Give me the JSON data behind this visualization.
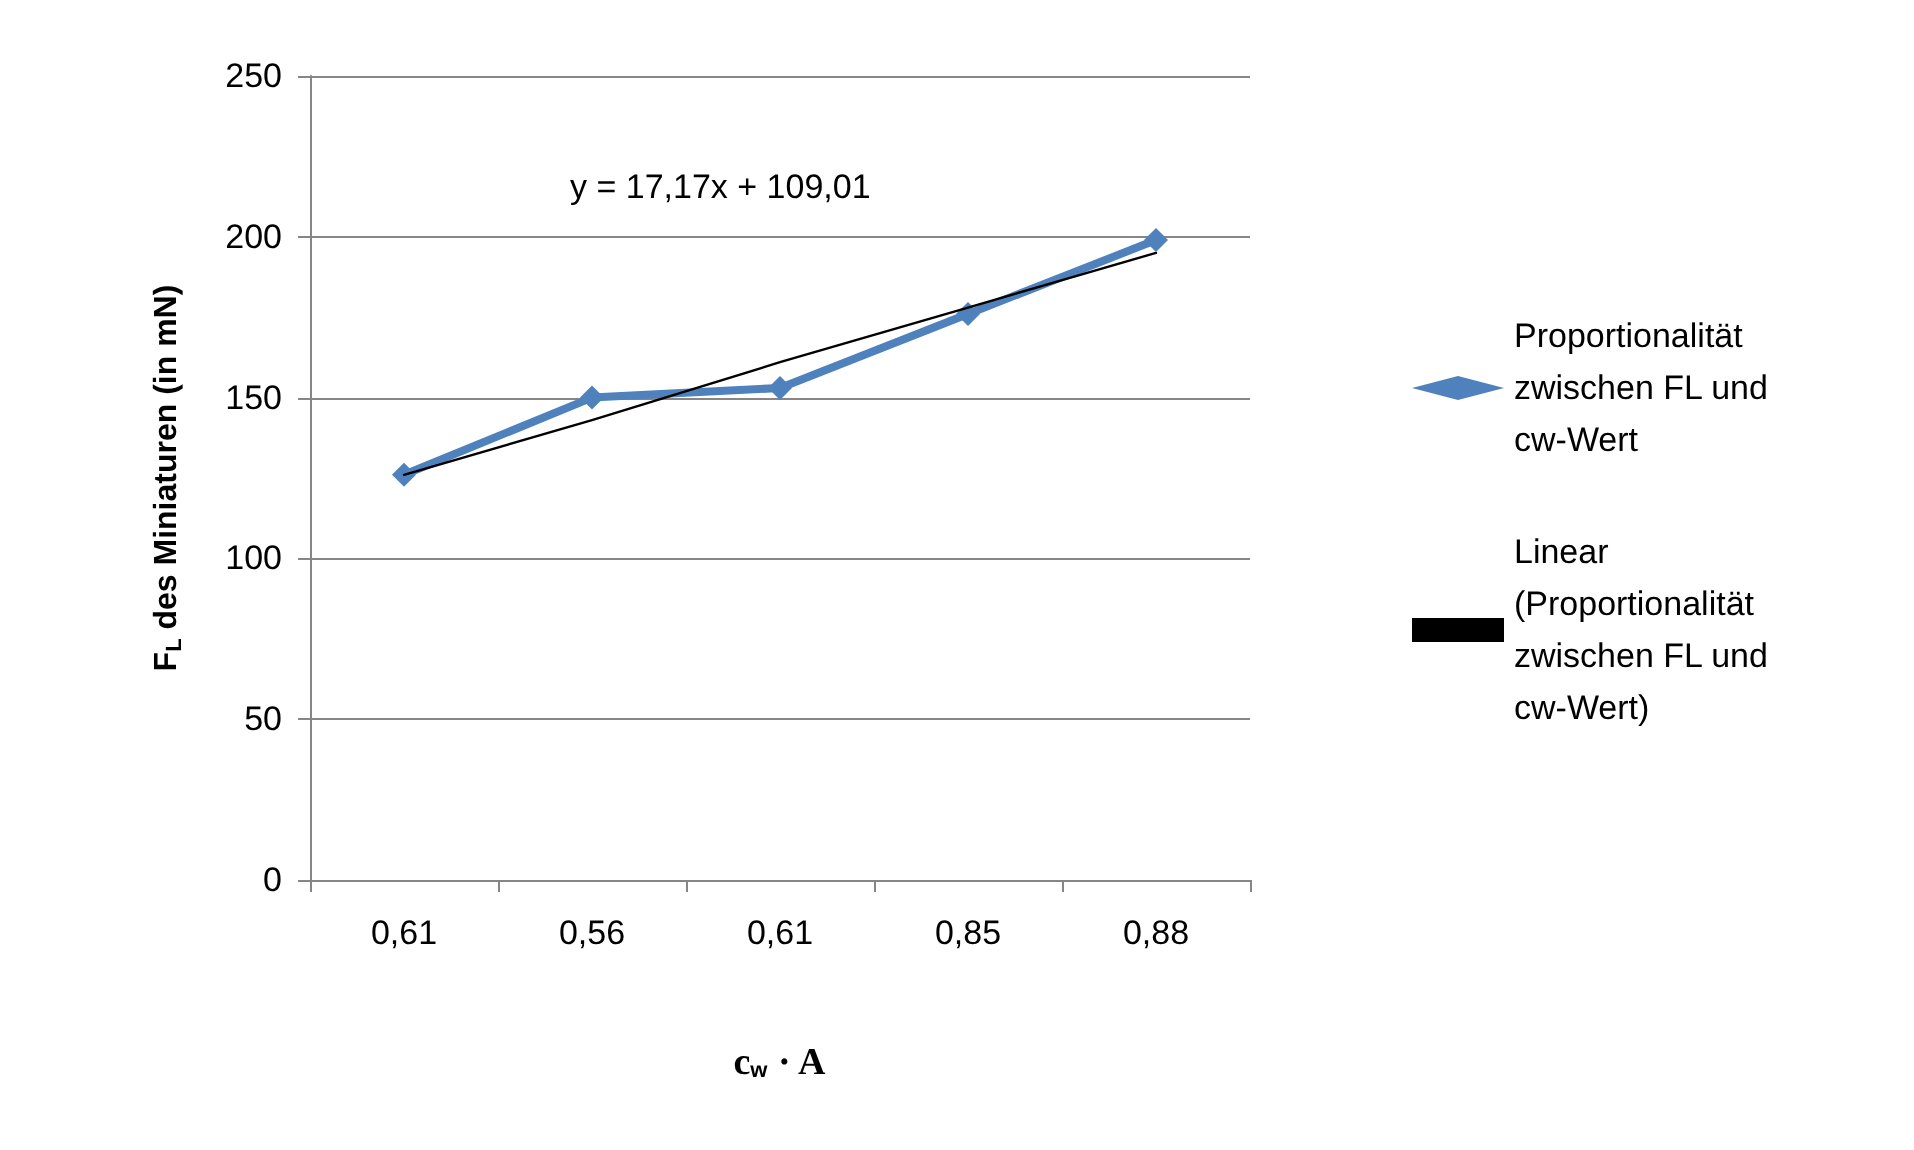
{
  "chart_data": {
    "type": "line",
    "xlabel": "c$_{w}$ · A",
    "ylabel": "F$_{L}$ des Miniaturen (in mN)",
    "categories": [
      "0,61",
      "0,56",
      "0,61",
      "0,85",
      "0,88"
    ],
    "series": [
      {
        "name": "Proportionalität zwischen FL und cw-Wert",
        "color": "#4f81bd",
        "values": [
          126,
          150,
          153,
          176,
          199
        ],
        "marker": "diamond",
        "line_style": "solid"
      },
      {
        "name": "Linear (Proportionalität zwischen FL und cw-Wert)",
        "color": "#000000",
        "values": [
          126,
          143,
          161,
          178,
          195
        ],
        "marker": "none",
        "line_style": "solid"
      }
    ],
    "ylim": [
      0,
      250
    ],
    "yticks": [
      0,
      50,
      100,
      150,
      200,
      250
    ],
    "grid": "y",
    "legend": "right",
    "annotations": [
      "y = 17,17x + 109,01"
    ]
  }
}
